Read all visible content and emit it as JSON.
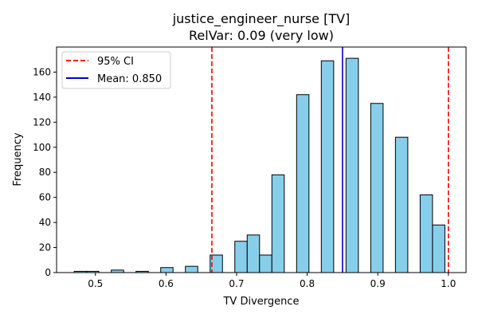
{
  "chart_data": {
    "type": "bar",
    "title": "justice_engineer_nurse [TV]",
    "subtitle": "RelVar: 0.09 (very low)",
    "xlabel": "TV Divergence",
    "ylabel": "Frequency",
    "xlim": [
      0.445,
      1.025
    ],
    "ylim": [
      0,
      180
    ],
    "grid": false,
    "legend_position": "top-left",
    "bin_width": 0.0175,
    "bars": [
      {
        "x": 0.47,
        "count": 1
      },
      {
        "x": 0.4875,
        "count": 1
      },
      {
        "x": 0.5225,
        "count": 2
      },
      {
        "x": 0.5575,
        "count": 1
      },
      {
        "x": 0.5925,
        "count": 4
      },
      {
        "x": 0.6275,
        "count": 5
      },
      {
        "x": 0.6625,
        "count": 14
      },
      {
        "x": 0.6975,
        "count": 25
      },
      {
        "x": 0.715,
        "count": 30
      },
      {
        "x": 0.7325,
        "count": 14
      },
      {
        "x": 0.75,
        "count": 78
      },
      {
        "x": 0.785,
        "count": 142
      },
      {
        "x": 0.82,
        "count": 169
      },
      {
        "x": 0.855,
        "count": 171
      },
      {
        "x": 0.89,
        "count": 135
      },
      {
        "x": 0.925,
        "count": 108
      },
      {
        "x": 0.96,
        "count": 62
      },
      {
        "x": 0.9775,
        "count": 38
      }
    ],
    "xticks": [
      {
        "value": 0.5,
        "label": "0.5"
      },
      {
        "value": 0.6,
        "label": "0.6"
      },
      {
        "value": 0.7,
        "label": "0.7"
      },
      {
        "value": 0.8,
        "label": "0.8"
      },
      {
        "value": 0.9,
        "label": "0.9"
      },
      {
        "value": 1.0,
        "label": "1.0"
      }
    ],
    "yticks": [
      {
        "value": 0,
        "label": "0"
      },
      {
        "value": 20,
        "label": "20"
      },
      {
        "value": 40,
        "label": "40"
      },
      {
        "value": 60,
        "label": "60"
      },
      {
        "value": 80,
        "label": "80"
      },
      {
        "value": 100,
        "label": "100"
      },
      {
        "value": 120,
        "label": "120"
      },
      {
        "value": 140,
        "label": "140"
      },
      {
        "value": 160,
        "label": "160"
      }
    ],
    "ci_lower": 0.665,
    "ci_upper": 1.0,
    "mean": 0.85,
    "legend": {
      "ci_label": "95% CI",
      "mean_label": "Mean: 0.850"
    },
    "colors": {
      "bar_fill": "#87ceeb",
      "bar_edge": "#000000",
      "ci_line": "#ff0000",
      "mean_line": "#0000cd"
    }
  }
}
